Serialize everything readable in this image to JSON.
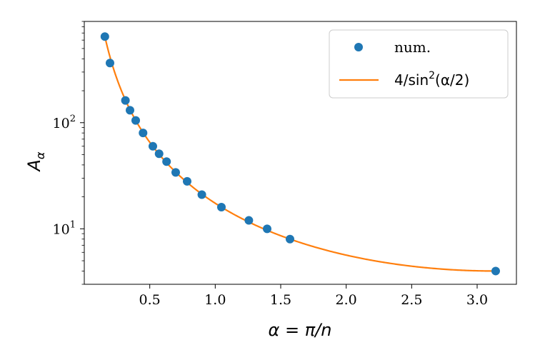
{
  "chart_data": {
    "type": "scatter",
    "xlabel": "α = π/n",
    "ylabel": "A",
    "ylabel_subscript": "α",
    "xlim": [
      0.0,
      3.3
    ],
    "ylim": [
      3.0,
      900.0
    ],
    "yscale": "log",
    "grid": false,
    "legend_position": "top-right",
    "x_ticks": [
      {
        "value": 0.5,
        "label": "0.5"
      },
      {
        "value": 1.0,
        "label": "1.0"
      },
      {
        "value": 1.5,
        "label": "1.5"
      },
      {
        "value": 2.0,
        "label": "2.0"
      },
      {
        "value": 2.5,
        "label": "2.5"
      },
      {
        "value": 3.0,
        "label": "3.0"
      }
    ],
    "y_ticks": [
      {
        "value": 10,
        "base": "10",
        "exp": "1"
      },
      {
        "value": 100,
        "base": "10",
        "exp": "2"
      }
    ],
    "series": [
      {
        "name": "num.",
        "kind": "scatter",
        "color": "#1f77b4",
        "x": [
          0.1571,
          0.1963,
          0.3142,
          0.3491,
          0.3927,
          0.4488,
          0.5236,
          0.5712,
          0.6283,
          0.6981,
          0.7854,
          0.8976,
          1.0472,
          1.2566,
          1.3963,
          1.5708,
          3.1416
        ],
        "y": [
          648,
          365,
          162,
          131,
          105,
          80,
          60,
          51,
          43,
          34,
          28,
          21,
          16,
          12,
          10,
          8,
          4
        ]
      },
      {
        "name_prefix": "4/sin",
        "name_exp": "2",
        "name_suffix": "(α/2)",
        "kind": "line",
        "color": "#ff7f0e",
        "formula": "4/sin^2(x/2)",
        "x_range": [
          0.1571,
          3.1416
        ]
      }
    ]
  }
}
